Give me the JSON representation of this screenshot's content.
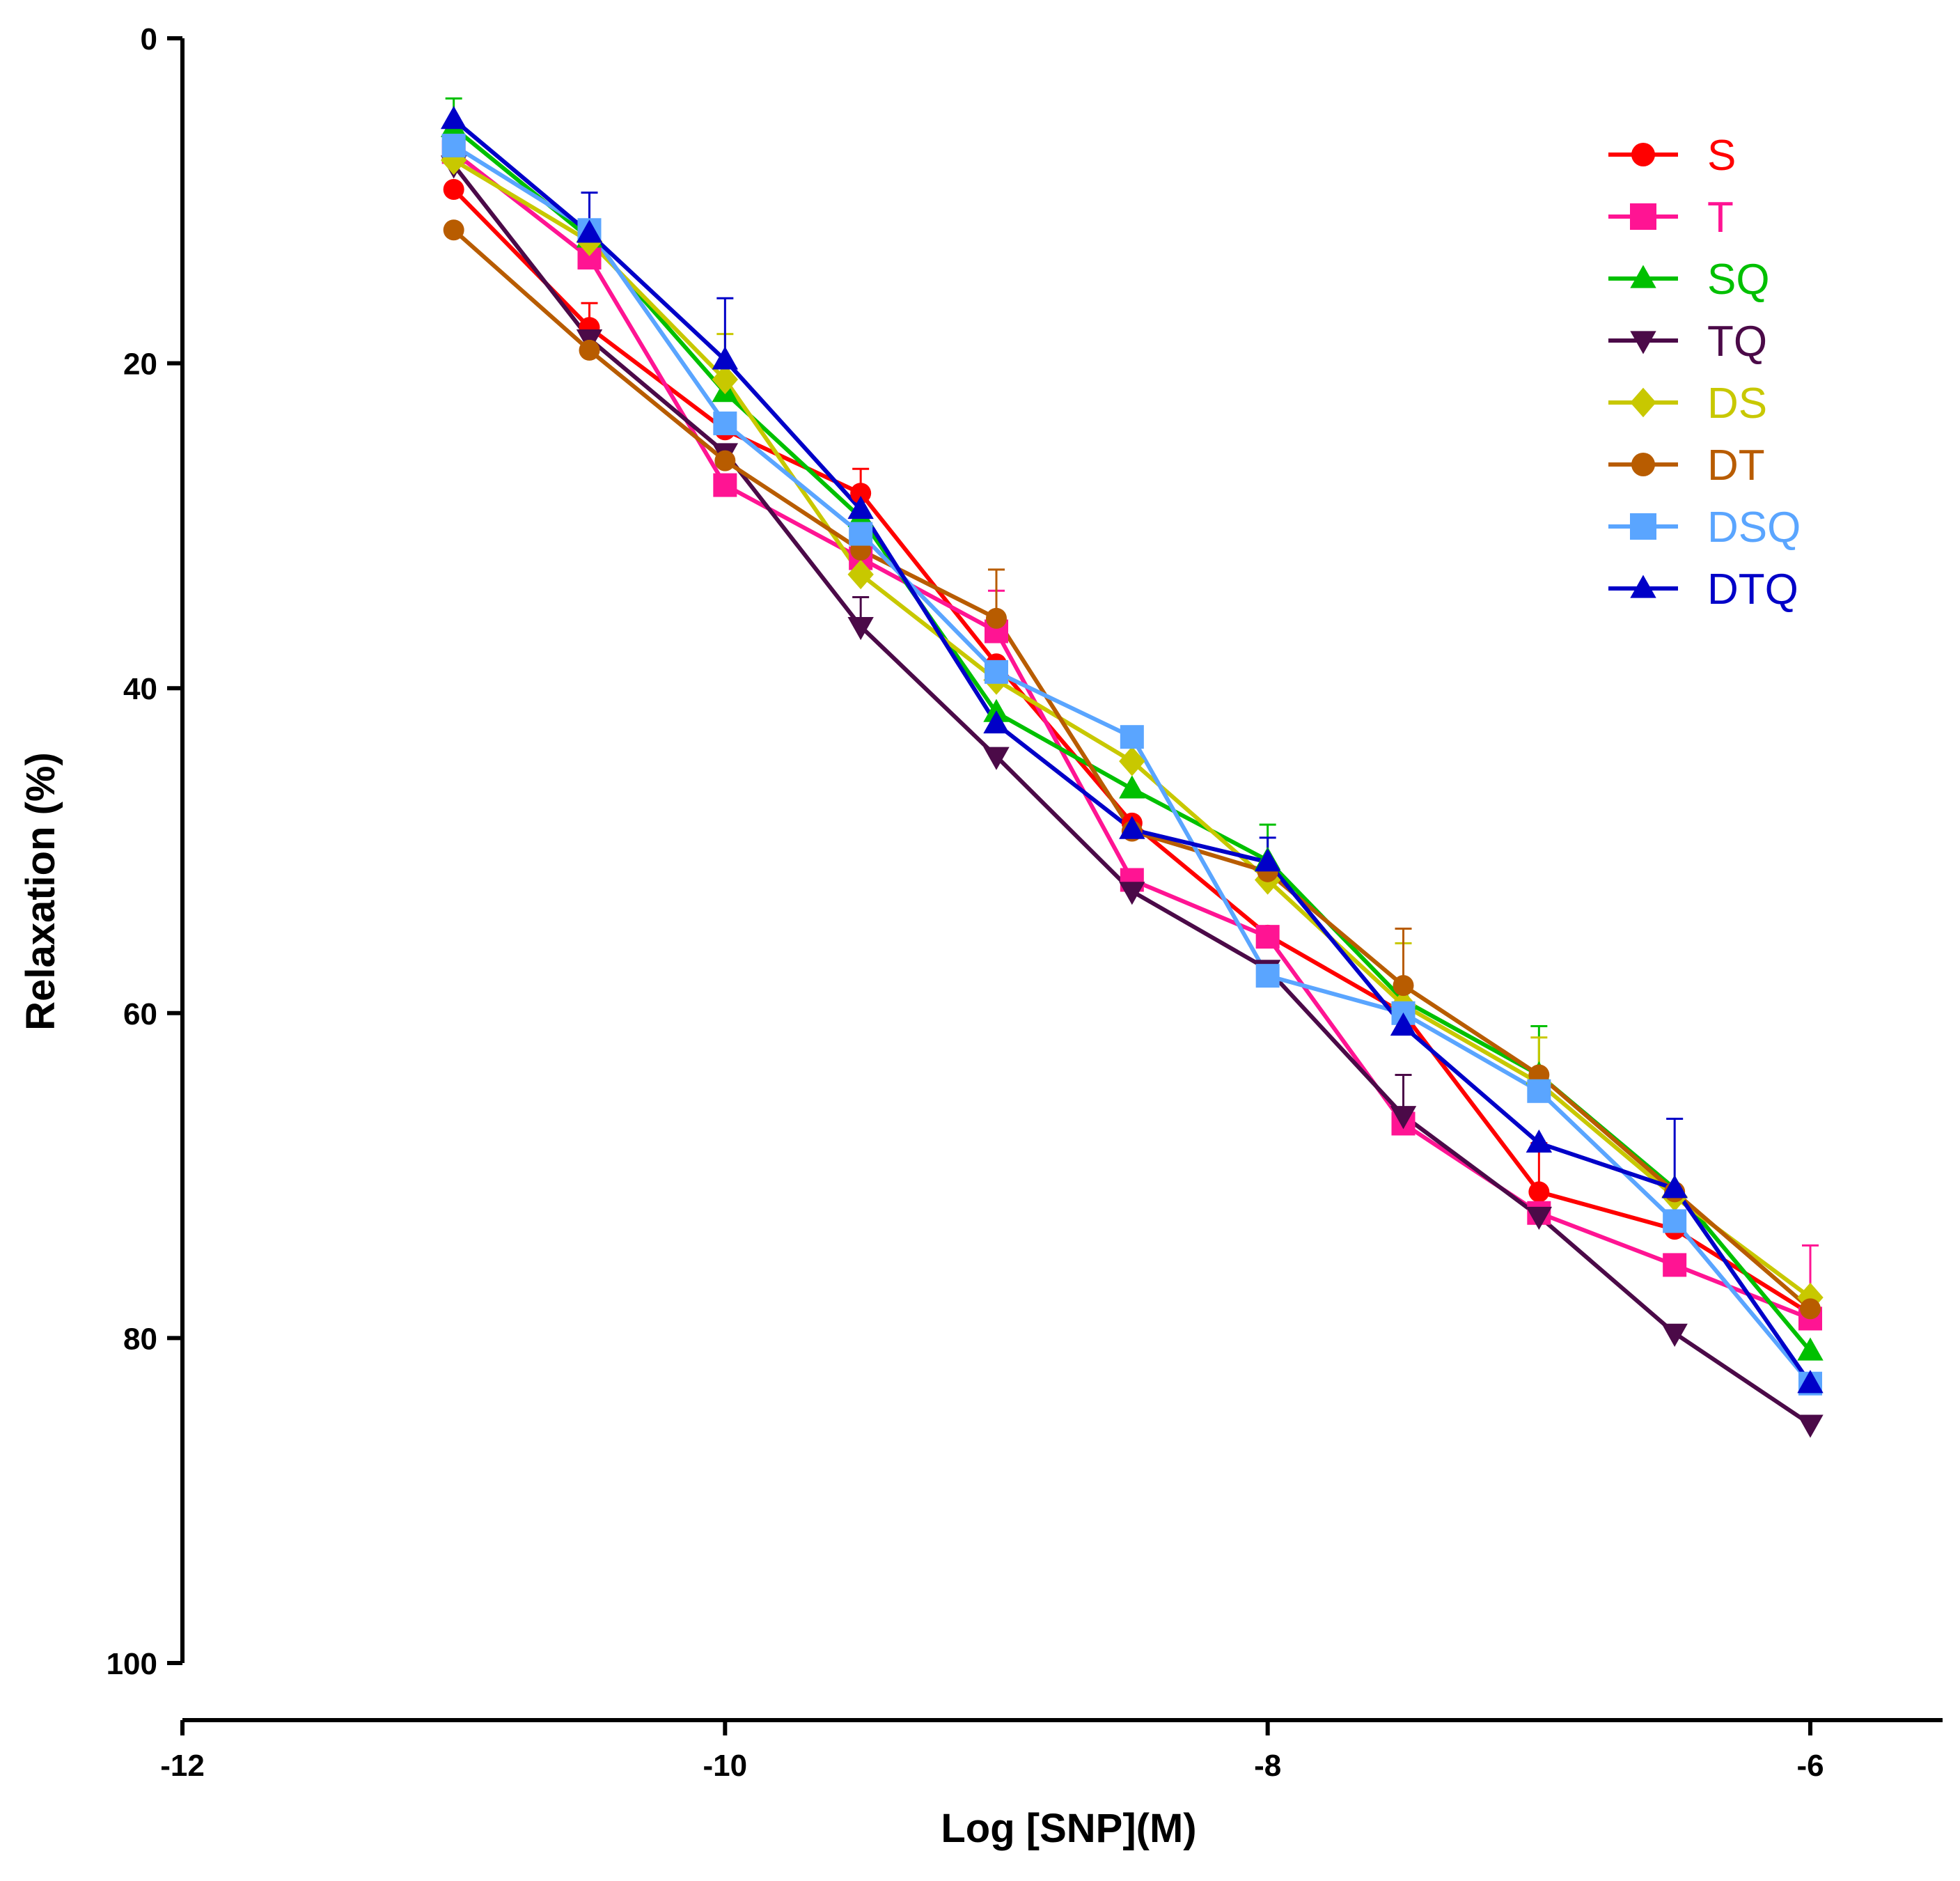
{
  "chart_data": {
    "type": "line",
    "title": "",
    "xlabel": "Log [SNP](M)",
    "ylabel": "Relaxation (%)",
    "xlim": [
      -12,
      -5.75
    ],
    "ylim": [
      0,
      100
    ],
    "y_inverted": true,
    "x_ticks": [
      -12,
      -10,
      -8,
      -6
    ],
    "x_tick_labels": [
      "-12",
      "-10",
      "-8",
      "-6"
    ],
    "y_ticks": [
      0,
      20,
      40,
      60,
      80,
      100
    ],
    "y_tick_labels": [
      "0",
      "20",
      "40",
      "60",
      "80",
      "100"
    ],
    "legend_position": "top-right",
    "x": [
      -11,
      -10.5,
      -10,
      -9.5,
      -9,
      -8.5,
      -8,
      -7.5,
      -7,
      -6.5,
      -6
    ],
    "series": [
      {
        "name": "S",
        "color": "#ff0000",
        "marker": "circle",
        "values": [
          9.3,
          17.8,
          24.1,
          28.0,
          38.5,
          48.3,
          55.2,
          60.0,
          71.0,
          73.3,
          78.5
        ],
        "errors": [
          0,
          1.5,
          0,
          1.5,
          0,
          0,
          0,
          0,
          3.0,
          0,
          0
        ]
      },
      {
        "name": "T",
        "color": "#ff1493",
        "marker": "square",
        "values": [
          7.0,
          13.5,
          27.5,
          32.0,
          36.5,
          51.8,
          55.3,
          66.8,
          72.3,
          75.5,
          78.8
        ],
        "errors": [
          0,
          0,
          0,
          0,
          2.5,
          0,
          0,
          0,
          0,
          0,
          4.5
        ]
      },
      {
        "name": "SQ",
        "color": "#00c000",
        "marker": "triangle-up",
        "values": [
          5.5,
          12.3,
          21.8,
          29.5,
          41.5,
          46.2,
          50.6,
          59.2,
          63.8,
          70.8,
          80.8
        ],
        "errors": [
          1.8,
          0,
          0,
          0,
          0,
          0,
          2.2,
          0,
          3.0,
          0,
          0
        ]
      },
      {
        "name": "TQ",
        "color": "#4b0a48",
        "marker": "triangle-down",
        "values": [
          7.8,
          18.5,
          25.5,
          36.2,
          44.2,
          52.5,
          57.3,
          66.3,
          72.5,
          79.7,
          85.3
        ],
        "errors": [
          0,
          0,
          0,
          1.8,
          0,
          0,
          0,
          2.5,
          0,
          0,
          0
        ]
      },
      {
        "name": "DS",
        "color": "#c8c800",
        "marker": "diamond",
        "values": [
          7.5,
          12.5,
          21.0,
          33.0,
          39.5,
          44.5,
          51.8,
          59.5,
          64.3,
          71.3,
          77.5
        ],
        "errors": [
          0,
          0,
          2.8,
          0,
          0,
          1.0,
          0,
          3.8,
          2.8,
          0,
          0
        ]
      },
      {
        "name": "DT",
        "color": "#b85c00",
        "marker": "circle",
        "values": [
          11.8,
          19.2,
          26.0,
          31.5,
          35.7,
          48.8,
          51.3,
          58.3,
          63.8,
          71.0,
          78.2
        ],
        "errors": [
          0,
          0,
          0,
          0,
          3.0,
          0,
          0,
          3.5,
          0,
          0,
          0
        ]
      },
      {
        "name": "DSQ",
        "color": "#5aa5ff",
        "marker": "square",
        "values": [
          6.6,
          11.8,
          23.7,
          30.5,
          39.0,
          43.0,
          57.7,
          60.0,
          64.8,
          72.8,
          82.8
        ],
        "errors": [
          0,
          0,
          0,
          0,
          0,
          0,
          0,
          0,
          0,
          0,
          0
        ]
      },
      {
        "name": "DTQ",
        "color": "#0000c8",
        "marker": "triangle-up",
        "values": [
          5.0,
          12.0,
          19.8,
          29.0,
          42.2,
          48.7,
          50.7,
          60.8,
          68.0,
          70.8,
          82.8
        ],
        "errors": [
          0,
          2.5,
          3.8,
          0,
          0,
          0,
          1.5,
          0,
          0,
          4.3,
          0
        ]
      }
    ]
  }
}
